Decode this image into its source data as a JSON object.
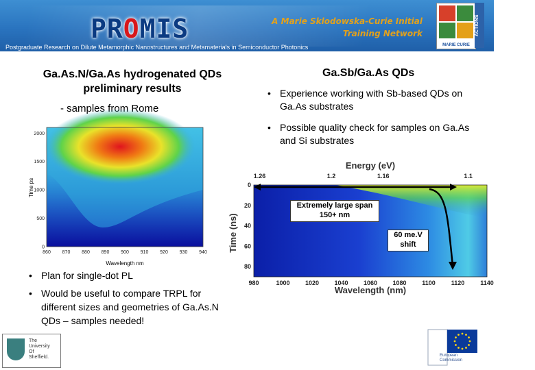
{
  "header": {
    "logo_pre": "PR",
    "logo_o": "O",
    "logo_post": "MIS",
    "network_line1": "A Marie Sklodowska-Curie Initial",
    "network_line2": "Training Network",
    "marie_curie_label": "MARIE CURIE",
    "actions_label": "ACTIONS",
    "subtitle": "Postgraduate Research on Dilute Metamorphic Nanostructures and Metamaterials in Semiconductor Photonics"
  },
  "left": {
    "title_line1": "Ga.As.N/Ga.As hydrogenated QDs",
    "title_line2": "preliminary results",
    "subtitle": "- samples from Rome",
    "bullets": [
      "Plan for single-dot PL",
      "Would be useful to compare TRPL for different sizes and geometries of Ga.As.N QDs – samples needed!"
    ]
  },
  "right": {
    "title": "Ga.Sb/Ga.As QDs",
    "bullets": [
      "Experience working with Sb-based QDs on Ga.As substrates",
      "Possible quality check for samples on Ga.As and Si substrates"
    ],
    "callout_span_line1": "Extremely large span",
    "callout_span_line2": "150+ nm",
    "callout_shift_line1": "60 me.V",
    "callout_shift_line2": "shift"
  },
  "footer": {
    "sheffield_line1": "The",
    "sheffield_line2": "University",
    "sheffield_line3": "Of",
    "sheffield_line4": "Sheffield.",
    "ec_line1": "European",
    "ec_line2": "Commission"
  },
  "colors": {
    "header_blue": "#2a74bf",
    "logo_blue": "#0b3b82",
    "logo_red": "#d8171b",
    "network_gold": "#e2a11c"
  },
  "chart_data": [
    {
      "type": "heatmap",
      "xlabel": "Wavelength nm",
      "ylabel": "Time ps",
      "xlim": [
        860,
        940
      ],
      "ylim": [
        0,
        2100
      ],
      "x_ticks": [
        860,
        870,
        880,
        890,
        900,
        910,
        920,
        930,
        940
      ],
      "y_ticks": [
        0,
        500,
        1000,
        1500,
        2000
      ]
    },
    {
      "type": "heatmap",
      "xlabel": "Wavelength (nm)",
      "ylabel": "Time (ns)",
      "top_label": "Energy (eV)",
      "xlim": [
        980,
        1140
      ],
      "ylim": [
        0,
        90
      ],
      "x_ticks": [
        980,
        1000,
        1020,
        1040,
        1060,
        1080,
        1100,
        1120,
        1140
      ],
      "y_ticks": [
        0,
        20,
        40,
        60,
        80
      ],
      "top_ticks": [
        "1.26",
        "1.2",
        "1.16",
        "1.1"
      ]
    }
  ]
}
